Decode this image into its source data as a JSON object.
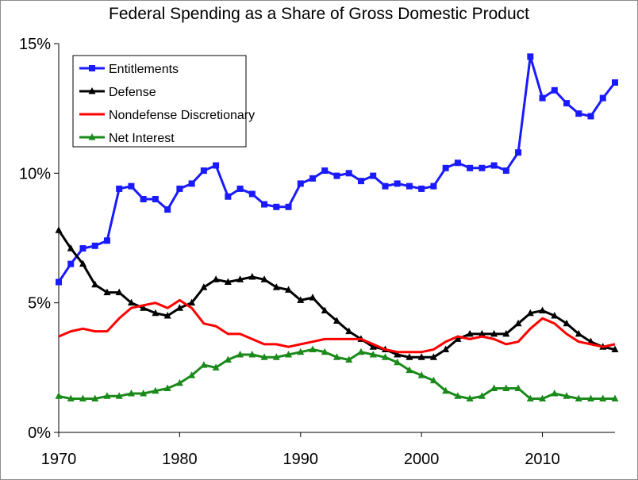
{
  "chart_data": {
    "type": "line",
    "title": "Federal Spending as a Share of Gross Domestic Product",
    "xlabel": "",
    "ylabel": "",
    "xlim": [
      1970,
      2016
    ],
    "ylim": [
      0,
      15
    ],
    "x_ticks": [
      1970,
      1980,
      1990,
      2000,
      2010
    ],
    "y_ticks": [
      0,
      5,
      10,
      15
    ],
    "y_tick_labels": [
      "0%",
      "5%",
      "10%",
      "15%"
    ],
    "legend_position": "top-left",
    "x": [
      1970,
      1971,
      1972,
      1973,
      1974,
      1975,
      1976,
      1977,
      1978,
      1979,
      1980,
      1981,
      1982,
      1983,
      1984,
      1985,
      1986,
      1987,
      1988,
      1989,
      1990,
      1991,
      1992,
      1993,
      1994,
      1995,
      1996,
      1997,
      1998,
      1999,
      2000,
      2001,
      2002,
      2003,
      2004,
      2005,
      2006,
      2007,
      2008,
      2009,
      2010,
      2011,
      2012,
      2013,
      2014,
      2015,
      2016
    ],
    "series": [
      {
        "name": "Entitlements",
        "color": "#1a1aff",
        "marker": "square",
        "values": [
          5.8,
          6.5,
          7.1,
          7.2,
          7.4,
          9.4,
          9.5,
          9.0,
          9.0,
          8.6,
          9.4,
          9.6,
          10.1,
          10.3,
          9.1,
          9.4,
          9.2,
          8.8,
          8.7,
          8.7,
          9.6,
          9.8,
          10.1,
          9.9,
          10.0,
          9.7,
          9.9,
          9.5,
          9.6,
          9.5,
          9.4,
          9.5,
          10.2,
          10.4,
          10.2,
          10.2,
          10.3,
          10.1,
          10.8,
          14.5,
          12.9,
          13.2,
          12.7,
          12.3,
          12.2,
          12.9,
          13.5
        ]
      },
      {
        "name": "Defense",
        "color": "#000000",
        "marker": "triangle",
        "values": [
          7.8,
          7.1,
          6.5,
          5.7,
          5.4,
          5.4,
          5.0,
          4.8,
          4.6,
          4.5,
          4.8,
          5.0,
          5.6,
          5.9,
          5.8,
          5.9,
          6.0,
          5.9,
          5.6,
          5.5,
          5.1,
          5.2,
          4.7,
          4.3,
          3.9,
          3.6,
          3.3,
          3.2,
          3.0,
          2.9,
          2.9,
          2.9,
          3.2,
          3.6,
          3.8,
          3.8,
          3.8,
          3.8,
          4.2,
          4.6,
          4.7,
          4.5,
          4.2,
          3.8,
          3.5,
          3.3,
          3.2
        ]
      },
      {
        "name": "Nondefense Discretionary",
        "color": "#ff0000",
        "marker": "none",
        "values": [
          3.7,
          3.9,
          4.0,
          3.9,
          3.9,
          4.4,
          4.8,
          4.9,
          5.0,
          4.8,
          5.1,
          4.8,
          4.2,
          4.1,
          3.8,
          3.8,
          3.6,
          3.4,
          3.4,
          3.3,
          3.4,
          3.5,
          3.6,
          3.6,
          3.6,
          3.6,
          3.4,
          3.2,
          3.1,
          3.1,
          3.1,
          3.2,
          3.5,
          3.7,
          3.6,
          3.7,
          3.6,
          3.4,
          3.5,
          4.0,
          4.4,
          4.2,
          3.8,
          3.5,
          3.4,
          3.3,
          3.4
        ]
      },
      {
        "name": "Net Interest",
        "color": "#1a8a1a",
        "marker": "triangle",
        "values": [
          1.4,
          1.3,
          1.3,
          1.3,
          1.4,
          1.4,
          1.5,
          1.5,
          1.6,
          1.7,
          1.9,
          2.2,
          2.6,
          2.5,
          2.8,
          3.0,
          3.0,
          2.9,
          2.9,
          3.0,
          3.1,
          3.2,
          3.1,
          2.9,
          2.8,
          3.1,
          3.0,
          2.9,
          2.7,
          2.4,
          2.2,
          2.0,
          1.6,
          1.4,
          1.3,
          1.4,
          1.7,
          1.7,
          1.7,
          1.3,
          1.3,
          1.5,
          1.4,
          1.3,
          1.3,
          1.3,
          1.3
        ]
      }
    ]
  }
}
